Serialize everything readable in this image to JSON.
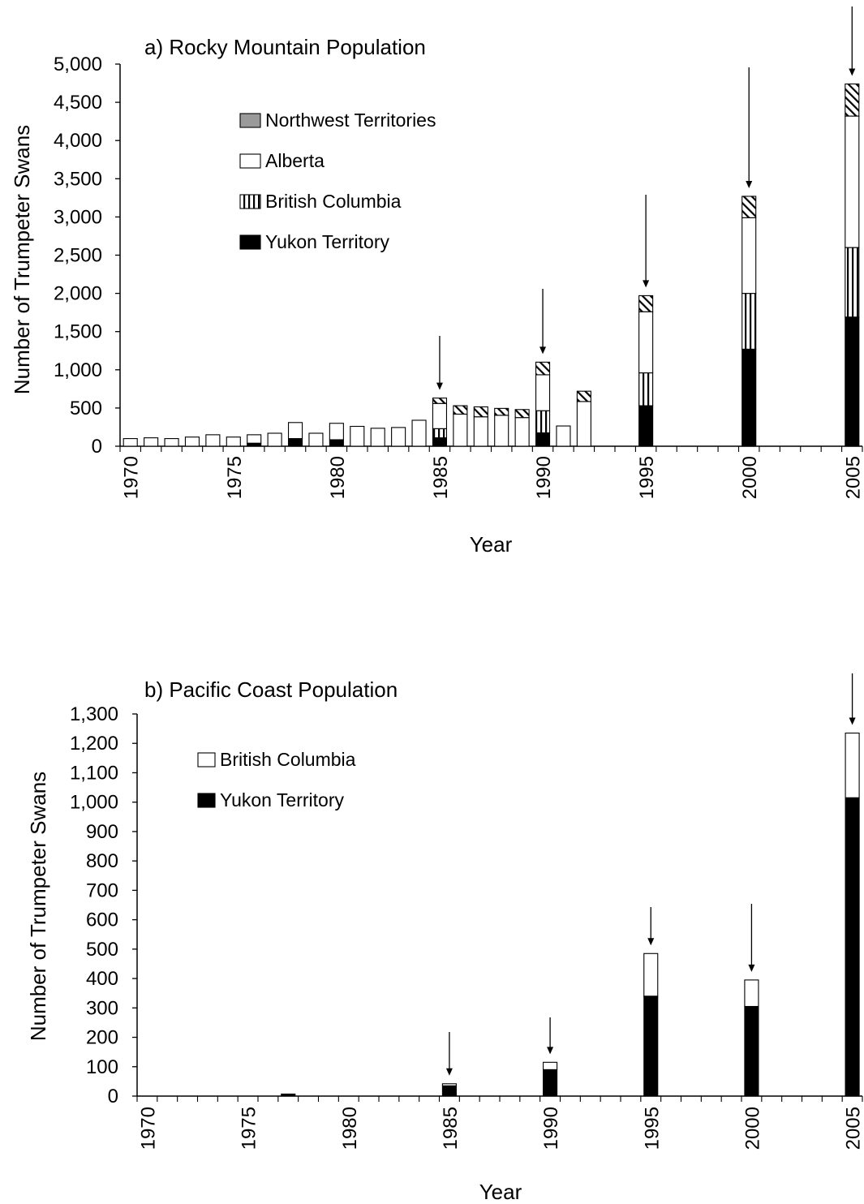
{
  "chart_data": [
    {
      "type": "bar",
      "stacked": true,
      "title": "a) Rocky Mountain Population",
      "xlabel": "Year",
      "ylabel": "Number of Trumpeter Swans",
      "xlim": [
        1970,
        2005
      ],
      "ylim": [
        0,
        5000
      ],
      "y_ticks": [
        0,
        500,
        1000,
        1500,
        2000,
        2500,
        3000,
        3500,
        4000,
        4500,
        5000
      ],
      "y_tick_labels": [
        "0",
        "500",
        "1,000",
        "1,500",
        "2,000",
        "2,500",
        "3,000",
        "3,500",
        "4,000",
        "4,500",
        "5,000"
      ],
      "x_tick_labels": [
        "1970",
        "1975",
        "1980",
        "1985",
        "1990",
        "1995",
        "2000",
        "2005"
      ],
      "legend_position": "upper-left inside plot",
      "legend": [
        "Northwest Territories",
        "Alberta",
        "British Columbia",
        "Yukon Territory"
      ],
      "stack_order": [
        "Yukon Territory",
        "British Columbia",
        "Alberta",
        "Northwest Territories"
      ],
      "series_fills": {
        "Yukon Territory": "solid",
        "British Columbia": "vertical",
        "Alberta": "white",
        "Northwest Territories": "diagonal"
      },
      "legend_swatch_styles": {
        "Northwest Territories": "gray",
        "Alberta": "white",
        "British Columbia": "vertical",
        "Yukon Territory": "solid"
      },
      "years": [
        1970,
        1971,
        1972,
        1973,
        1974,
        1975,
        1976,
        1977,
        1978,
        1979,
        1980,
        1981,
        1982,
        1983,
        1984,
        1985,
        1986,
        1987,
        1988,
        1989,
        1990,
        1991,
        1992,
        1995,
        2000,
        2005
      ],
      "series": [
        {
          "name": "Yukon Territory",
          "values": [
            0,
            0,
            0,
            0,
            0,
            0,
            40,
            0,
            100,
            0,
            85,
            0,
            0,
            0,
            0,
            110,
            0,
            0,
            0,
            0,
            175,
            0,
            0,
            530,
            1270,
            1690
          ]
        },
        {
          "name": "British Columbia",
          "values": [
            0,
            0,
            0,
            0,
            0,
            0,
            0,
            0,
            0,
            0,
            0,
            0,
            0,
            0,
            0,
            120,
            0,
            0,
            0,
            0,
            290,
            0,
            0,
            430,
            730,
            910
          ]
        },
        {
          "name": "Alberta",
          "values": [
            100,
            110,
            100,
            120,
            150,
            120,
            110,
            170,
            210,
            170,
            215,
            260,
            235,
            245,
            340,
            330,
            420,
            385,
            405,
            375,
            470,
            265,
            585,
            800,
            990,
            1720
          ]
        },
        {
          "name": "Northwest Territories",
          "values": [
            0,
            0,
            0,
            0,
            0,
            0,
            0,
            0,
            0,
            0,
            0,
            0,
            0,
            0,
            0,
            70,
            110,
            130,
            90,
            105,
            165,
            0,
            135,
            210,
            280,
            420
          ]
        }
      ],
      "arrow_years": [
        1985,
        1990,
        1995,
        2000,
        2005
      ]
    },
    {
      "type": "bar",
      "stacked": true,
      "title": "b) Pacific Coast Population",
      "xlabel": "Year",
      "ylabel": "Number of Trumpeter Swans",
      "xlim": [
        1970,
        2005
      ],
      "ylim": [
        0,
        1300
      ],
      "y_ticks": [
        0,
        100,
        200,
        300,
        400,
        500,
        600,
        700,
        800,
        900,
        1000,
        1100,
        1200,
        1300
      ],
      "y_tick_labels": [
        "0",
        "100",
        "200",
        "300",
        "400",
        "500",
        "600",
        "700",
        "800",
        "900",
        "1,000",
        "1,100",
        "1,200",
        "1,300"
      ],
      "x_tick_labels": [
        "1970",
        "1975",
        "1980",
        "1985",
        "1990",
        "1995",
        "2000",
        "2005"
      ],
      "legend_position": "upper-left inside plot",
      "legend": [
        "British Columbia",
        "Yukon Territory"
      ],
      "stack_order": [
        "Yukon Territory",
        "British Columbia"
      ],
      "series_fills": {
        "Yukon Territory": "solid",
        "British Columbia": "white"
      },
      "legend_swatch_styles": {
        "British Columbia": "white",
        "Yukon Territory": "solid"
      },
      "years": [
        1977,
        1985,
        1990,
        1995,
        2000,
        2005
      ],
      "series": [
        {
          "name": "Yukon Territory",
          "values": [
            7,
            35,
            90,
            340,
            305,
            1015
          ]
        },
        {
          "name": "British Columbia",
          "values": [
            0,
            7,
            25,
            145,
            90,
            220
          ]
        }
      ],
      "arrow_years": [
        1985,
        1990,
        1995,
        2000,
        2005
      ]
    }
  ]
}
